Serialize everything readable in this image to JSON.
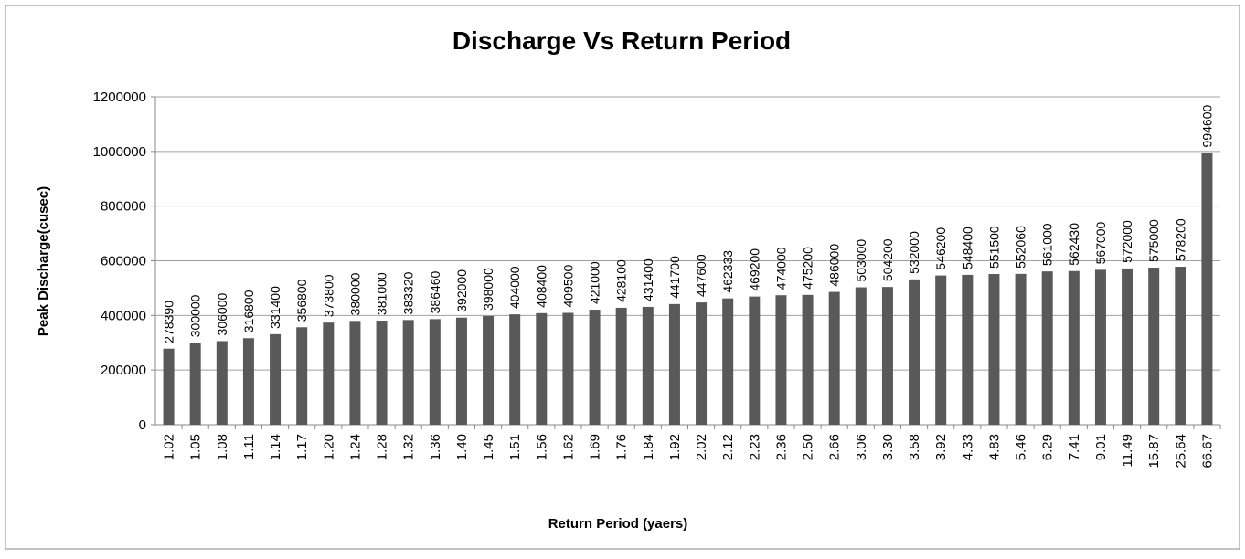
{
  "chart_data": {
    "type": "bar",
    "title": "Discharge Vs Return Period",
    "x_label": "Return Period (yaers)",
    "y_label": "Peak Discharge(cusec)",
    "categories": [
      "1.02",
      "1.05",
      "1.08",
      "1.11",
      "1.14",
      "1.17",
      "1.20",
      "1.24",
      "1.28",
      "1.32",
      "1.36",
      "1.40",
      "1.45",
      "1.51",
      "1.56",
      "1.62",
      "1.69",
      "1.76",
      "1.84",
      "1.92",
      "2.02",
      "2.12",
      "2.23",
      "2.36",
      "2.50",
      "2.66",
      "3.06",
      "3.30",
      "3.58",
      "3.92",
      "4.33",
      "4.83",
      "5.46",
      "6.29",
      "7.41",
      "9.01",
      "11.49",
      "15.87",
      "25.64",
      "66.67"
    ],
    "values": [
      278390,
      300000,
      306000,
      316800,
      331400,
      356800,
      373800,
      380000,
      381000,
      383320,
      386460,
      392000,
      398000,
      404000,
      408400,
      409500,
      421000,
      428100,
      431400,
      441700,
      447600,
      462333,
      469200,
      474000,
      475200,
      486000,
      503000,
      504200,
      532000,
      546200,
      548400,
      551500,
      552060,
      561000,
      562430,
      567000,
      572000,
      575000,
      578200,
      994600
    ],
    "color": "#595959",
    "ylim": [
      0,
      1200000
    ],
    "yticks": [
      0,
      200000,
      400000,
      600000,
      800000,
      1000000,
      1200000
    ],
    "grid": true
  }
}
